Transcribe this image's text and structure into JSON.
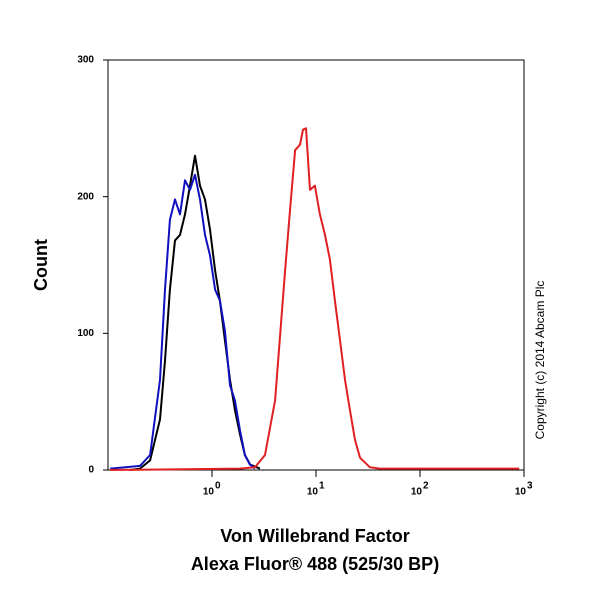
{
  "chart_data": {
    "type": "histogram-overlay",
    "ylabel": "Count",
    "xlabel": [
      "Von Willebrand Factor",
      "Alexa Fluor® 488 (525/30 BP)"
    ],
    "annotation": "Copyright (c) 2014 Abcam Plc",
    "xscale": "log",
    "xlim": [
      0.1,
      1000
    ],
    "xticks": [
      {
        "value": 1,
        "label": "10",
        "exponent": "0"
      },
      {
        "value": 10,
        "label": "10",
        "exponent": "1"
      },
      {
        "value": 100,
        "label": "10",
        "exponent": "2"
      },
      {
        "value": 1000,
        "label": "10",
        "exponent": "3"
      }
    ],
    "ylim": [
      0,
      300
    ],
    "yticks": [
      0,
      100,
      200,
      300
    ],
    "series": [
      {
        "color": "#000000",
        "x": [
          0.163,
          0.203,
          0.254,
          0.316,
          0.353,
          0.394,
          0.441,
          0.492,
          0.55,
          0.614,
          0.686,
          0.767,
          0.857,
          0.957,
          1.07,
          1.19,
          1.33,
          1.49,
          1.66,
          1.86,
          2.07,
          2.32,
          2.89
        ],
        "values": [
          0,
          1,
          7,
          37,
          80,
          132,
          168,
          172,
          187,
          208,
          230,
          208,
          198,
          176,
          146,
          124,
          95,
          66,
          44,
          26,
          11,
          4,
          1
        ]
      },
      {
        "color": "#1010c0",
        "x": [
          0.105,
          0.203,
          0.254,
          0.316,
          0.353,
          0.394,
          0.441,
          0.492,
          0.55,
          0.614,
          0.686,
          0.767,
          0.857,
          0.957,
          1.07,
          1.19,
          1.33,
          1.49,
          1.66,
          1.86,
          2.07,
          2.32,
          2.59
        ],
        "values": [
          1,
          3,
          11,
          66,
          132,
          183,
          198,
          187,
          212,
          205,
          216,
          198,
          172,
          157,
          132,
          124,
          102,
          62,
          51,
          29,
          11,
          4,
          1
        ]
      },
      {
        "color": "#e02020",
        "x": [
          0.105,
          1.86,
          2.59,
          3.23,
          4.04,
          5.04,
          5.62,
          6.29,
          7.02,
          7.5,
          8.02,
          8.75,
          9.77,
          10.9,
          12.2,
          13.6,
          15.2,
          17.0,
          19.0,
          21.2,
          23.7,
          26.5,
          33.0,
          41.2,
          900
        ],
        "values": [
          0,
          1,
          2,
          11,
          51,
          146,
          190,
          234,
          238,
          249,
          250,
          205,
          208,
          187,
          172,
          154,
          124,
          95,
          66,
          44,
          22,
          9,
          2,
          1,
          1
        ]
      }
    ]
  }
}
